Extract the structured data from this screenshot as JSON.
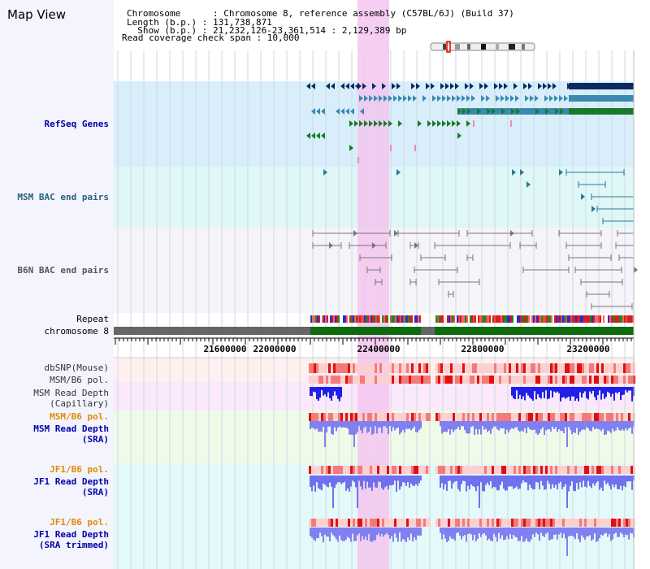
{
  "title": "Map View",
  "header": {
    "chromosome_line": "Chromosome      : Chromosome 8, reference assembly (C57BL/6J) (Build 37)",
    "length_line": "Length (b.p.) : 131,738,871",
    "show_line": "  Show (b.p.) : 21,232,126-23,361,514 : 2,129,389 bp",
    "coverage_line": "Read coverage check span : 10,000"
  },
  "tracks": {
    "refseq": "RefSeq Genes",
    "msm_bac": "MSM BAC end pairs",
    "b6n_bac": "B6N BAC end pairs",
    "repeat": "Repeat",
    "chromosome": "chromosome 8",
    "dbsnp": "dbSNP(Mouse)",
    "msm_b6_pol_1": "MSM/B6 pol.",
    "msm_read_depth_cap": "MSM Read Depth\n(Capillary)",
    "msm_b6_pol_2": "MSM/B6 pol.",
    "msm_read_depth_sra": "MSM Read Depth\n(SRA)",
    "jf1_b6_pol_1": "JF1/B6 pol.",
    "jf1_read_depth_sra": "JF1 Read Depth\n(SRA)",
    "jf1_b6_pol_2": "JF1/B6 pol.",
    "jf1_read_depth_trimmed": "JF1 Read Depth\n(SRA trimmed)"
  },
  "axis": {
    "tick_labels": [
      "21600000",
      "22000000",
      "22400000",
      "22800000",
      "23200000"
    ]
  },
  "colors": {
    "refseq_dark": "#0a2a60",
    "refseq_mid": "#3a8ab0",
    "refseq_green": "#1a7a2a",
    "msm_label": "#2a6080",
    "blue_label": "#0000aa",
    "orange_label": "#e08a00",
    "highlight": "#f3c6ee"
  }
}
